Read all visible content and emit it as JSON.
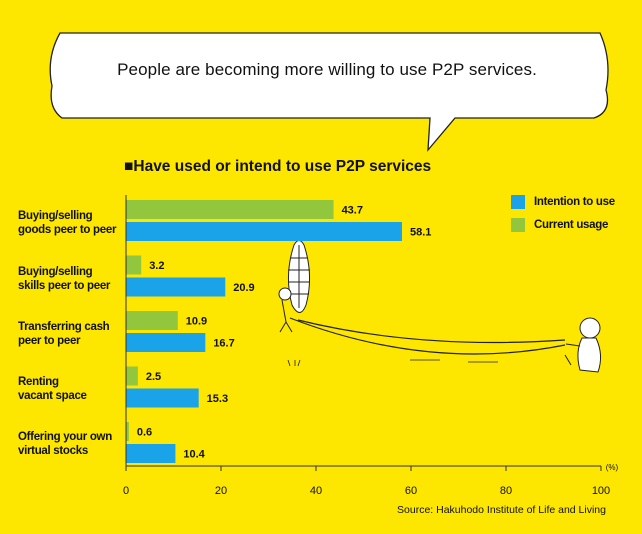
{
  "headline": "People are becoming more willing to use P2P services.",
  "subtitle": "Have used or intend to use P2P services",
  "subtitle_marker": "■",
  "source": "Source: Hakuhodo Institute of Life and Living",
  "colors": {
    "background": "#fde600",
    "intention": "#1aa3e8",
    "current": "#92c63c"
  },
  "chart_data": {
    "type": "bar",
    "orientation": "horizontal",
    "title": "Have used or intend to use P2P services",
    "categories": [
      [
        "Buying/selling",
        "goods peer to peer"
      ],
      [
        "Buying/selling",
        "skills peer to peer"
      ],
      [
        "Transferring cash",
        "peer to peer"
      ],
      [
        "Renting",
        "vacant space"
      ],
      [
        "Offering your own",
        "virtual stocks"
      ]
    ],
    "series": [
      {
        "name": "Current usage",
        "color": "#92c63c",
        "values": [
          43.7,
          3.2,
          10.9,
          2.5,
          0.6
        ]
      },
      {
        "name": "Intention to use",
        "color": "#1aa3e8",
        "values": [
          58.1,
          20.9,
          16.7,
          15.3,
          10.4
        ]
      }
    ],
    "legend": [
      "Intention to use",
      "Current usage"
    ],
    "legend_position": "top-right",
    "xlim": [
      0,
      100
    ],
    "xticks": [
      0,
      20,
      40,
      60,
      80,
      100
    ],
    "unit": "(%)",
    "grid": false
  }
}
